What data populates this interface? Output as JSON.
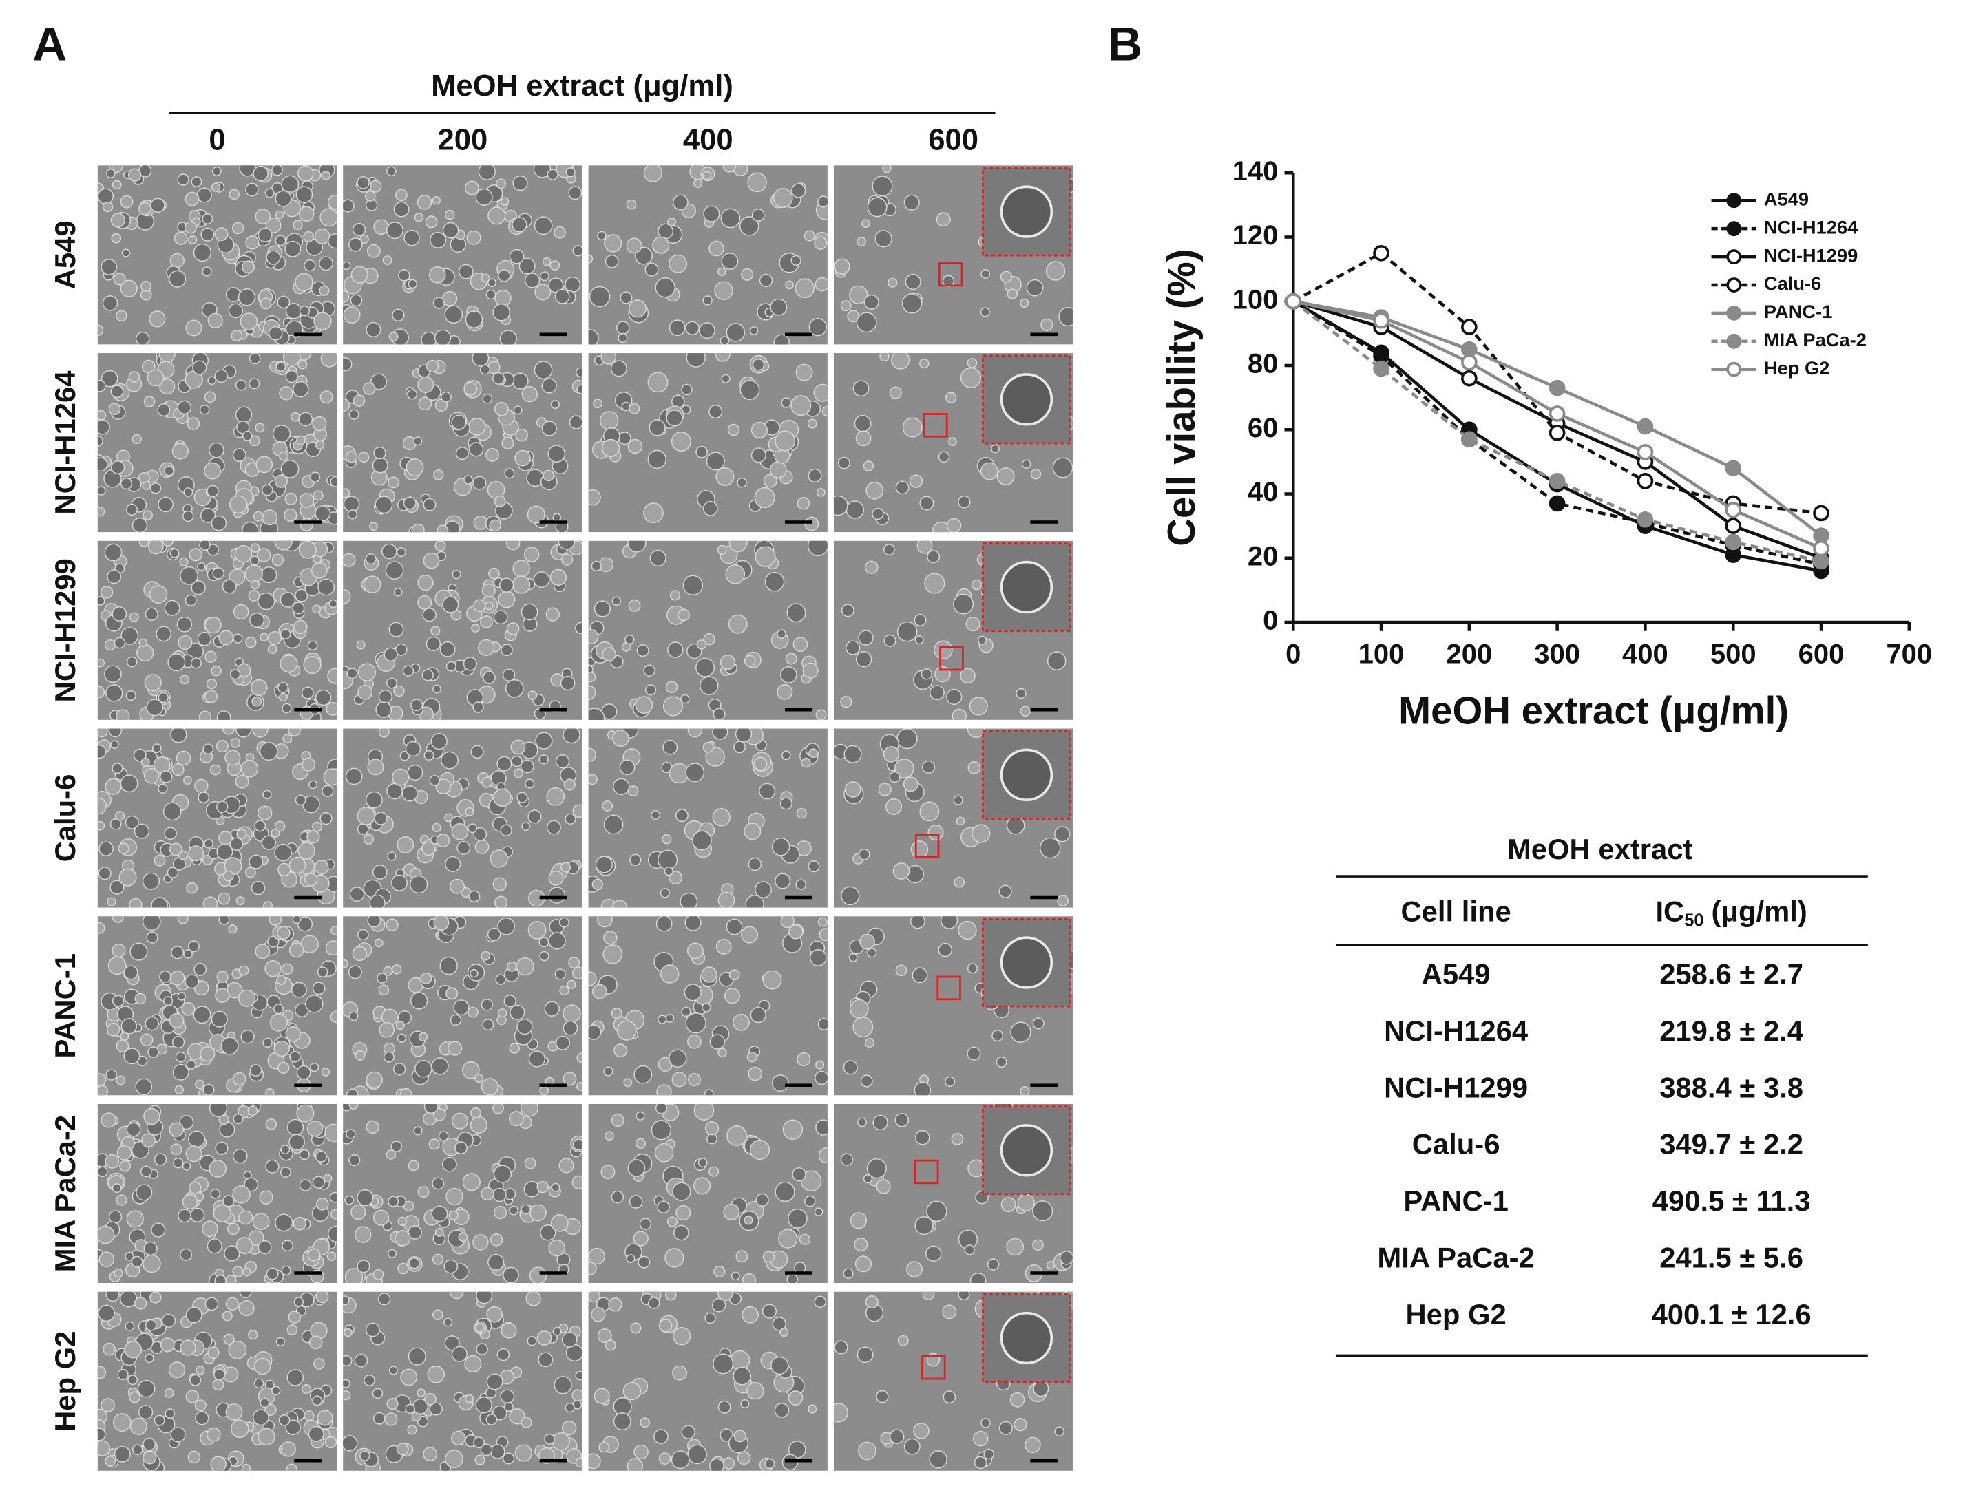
{
  "panel_a": {
    "label": "A",
    "title": "MeOH extract (μg/ml)",
    "columns": [
      "0",
      "200",
      "400",
      "600"
    ],
    "rows": [
      "A549",
      "NCI-H1264",
      "NCI-H1299",
      "Calu-6",
      "PANC-1",
      "MIA PaCa-2",
      "Hep G2"
    ]
  },
  "chart_data": {
    "label": "B",
    "type": "line",
    "xlabel": "MeOH extract (μg/ml)",
    "ylabel": "Cell viability (%)",
    "x": [
      0,
      100,
      200,
      300,
      400,
      500,
      600
    ],
    "xlim": [
      0,
      700
    ],
    "xticks": [
      0,
      100,
      200,
      300,
      400,
      500,
      600,
      700
    ],
    "ylim": [
      0,
      140
    ],
    "yticks": [
      0,
      20,
      40,
      60,
      80,
      100,
      120,
      140
    ],
    "legend": "top-right",
    "series": [
      {
        "name": "A549",
        "color": "#111111",
        "dashed": false,
        "marker": "filled",
        "values": [
          100,
          84,
          60,
          43,
          30,
          21,
          16
        ]
      },
      {
        "name": "NCI-H1264",
        "color": "#111111",
        "dashed": true,
        "marker": "filled",
        "values": [
          100,
          83,
          57,
          37,
          31,
          24,
          18
        ]
      },
      {
        "name": "NCI-H1299",
        "color": "#111111",
        "dashed": false,
        "marker": "open",
        "values": [
          100,
          92,
          76,
          62,
          50,
          30,
          20
        ]
      },
      {
        "name": "Calu-6",
        "color": "#111111",
        "dashed": true,
        "marker": "open",
        "values": [
          100,
          115,
          92,
          59,
          44,
          37,
          34
        ]
      },
      {
        "name": "PANC-1",
        "color": "#8a8a8a",
        "dashed": false,
        "marker": "filled",
        "values": [
          100,
          95,
          85,
          73,
          61,
          48,
          27
        ]
      },
      {
        "name": "MIA PaCa-2",
        "color": "#8a8a8a",
        "dashed": true,
        "marker": "filled",
        "values": [
          100,
          79,
          57,
          44,
          32,
          25,
          19
        ]
      },
      {
        "name": "Hep G2",
        "color": "#8a8a8a",
        "dashed": false,
        "marker": "open",
        "values": [
          100,
          94,
          81,
          65,
          53,
          35,
          23
        ]
      }
    ]
  },
  "table": {
    "title": "MeOH extract",
    "header": [
      "Cell line",
      {
        "main": "IC",
        "sub": "50",
        "rest": "(μg/ml)"
      }
    ],
    "rows": [
      [
        "A549",
        "258.6 ± 2.7"
      ],
      [
        "NCI-H1264",
        "219.8 ± 2.4"
      ],
      [
        "NCI-H1299",
        "388.4 ± 3.8"
      ],
      [
        "Calu-6",
        "349.7 ± 2.2"
      ],
      [
        "PANC-1",
        "490.5 ± 11.3"
      ],
      [
        "MIA PaCa-2",
        "241.5 ± 5.6"
      ],
      [
        "Hep G2",
        "400.1 ± 12.6"
      ]
    ]
  }
}
